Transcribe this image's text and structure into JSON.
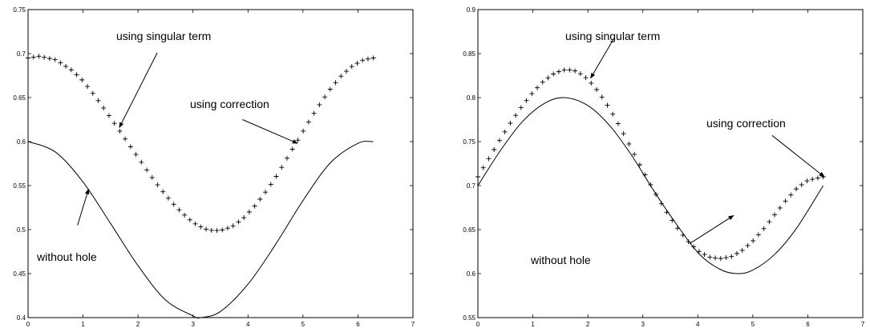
{
  "chart_data": [
    {
      "type": "line",
      "title": "",
      "xlabel": "",
      "ylabel": "",
      "xlim": [
        0,
        7
      ],
      "ylim": [
        0.4,
        0.75
      ],
      "x_ticks": [
        "0",
        "1",
        "2",
        "3",
        "4",
        "5",
        "6",
        "7"
      ],
      "y_ticks": [
        "0.4",
        "0.45",
        "0.5",
        "0.55",
        "0.6",
        "0.65",
        "0.7",
        "0.75"
      ],
      "grid": false,
      "series": [
        {
          "marker": "none",
          "color": "#000000",
          "x": [
            0,
            0.5,
            1,
            1.5,
            2,
            2.5,
            3,
            3.14,
            3.5,
            4,
            4.5,
            5,
            5.5,
            6,
            6.28
          ],
          "y": [
            0.6,
            0.588,
            0.554,
            0.507,
            0.459,
            0.42,
            0.402,
            0.4,
            0.407,
            0.438,
            0.483,
            0.533,
            0.576,
            0.598,
            0.6
          ]
        },
        {
          "marker": "plus",
          "color": "#000000",
          "x": [
            0,
            0.2,
            0.5,
            0.8,
            1,
            1.2,
            1.4,
            1.6,
            1.8,
            2,
            2.2,
            2.4,
            2.6,
            2.8,
            3,
            3.2,
            3.35,
            3.5,
            3.7,
            3.9,
            4.1,
            4.3,
            4.5,
            4.7,
            4.9,
            5.1,
            5.3,
            5.5,
            5.7,
            5.9,
            6.1,
            6.28
          ],
          "y": [
            0.695,
            0.697,
            0.693,
            0.681,
            0.669,
            0.653,
            0.636,
            0.618,
            0.6,
            0.582,
            0.564,
            0.547,
            0.532,
            0.519,
            0.508,
            0.501,
            0.499,
            0.499,
            0.503,
            0.512,
            0.525,
            0.541,
            0.559,
            0.58,
            0.601,
            0.622,
            0.642,
            0.66,
            0.675,
            0.686,
            0.693,
            0.695
          ]
        }
      ],
      "annotations": [
        {
          "text": "using singular term",
          "from": [
            2.35,
            0.701
          ],
          "to": [
            1.66,
            0.616
          ]
        },
        {
          "text": "using correction",
          "from": [
            3.9,
            0.625
          ],
          "to": [
            4.9,
            0.598
          ]
        },
        {
          "text": "without hole",
          "from": [
            0.9,
            0.505
          ],
          "to": [
            1.1,
            0.546
          ]
        }
      ]
    },
    {
      "type": "line",
      "title": "",
      "xlabel": "",
      "ylabel": "",
      "xlim": [
        0,
        7
      ],
      "ylim": [
        0.55,
        0.9
      ],
      "x_ticks": [
        "0",
        "1",
        "2",
        "3",
        "4",
        "5",
        "6",
        "7"
      ],
      "y_ticks": [
        "0.55",
        "0.6",
        "0.65",
        "0.7",
        "0.75",
        "0.8",
        "0.85",
        "0.9"
      ],
      "grid": false,
      "series": [
        {
          "marker": "none",
          "color": "#000000",
          "x": [
            0,
            0.4,
            0.8,
            1.2,
            1.57,
            2,
            2.4,
            2.8,
            3.14,
            3.5,
            4,
            4.4,
            4.71,
            5,
            5.4,
            5.8,
            6.28
          ],
          "y": [
            0.7,
            0.739,
            0.772,
            0.793,
            0.8,
            0.791,
            0.768,
            0.734,
            0.7,
            0.666,
            0.624,
            0.605,
            0.6,
            0.604,
            0.622,
            0.652,
            0.7
          ]
        },
        {
          "marker": "plus",
          "color": "#000000",
          "x": [
            0,
            0.2,
            0.4,
            0.6,
            0.8,
            1,
            1.2,
            1.4,
            1.6,
            1.8,
            2,
            2.2,
            2.4,
            2.6,
            2.8,
            3,
            3.2,
            3.4,
            3.6,
            3.8,
            4,
            4.2,
            4.4,
            4.6,
            4.8,
            5,
            5.2,
            5.4,
            5.6,
            5.8,
            6,
            6.28
          ],
          "y": [
            0.71,
            0.731,
            0.752,
            0.772,
            0.79,
            0.806,
            0.819,
            0.828,
            0.832,
            0.83,
            0.821,
            0.806,
            0.787,
            0.765,
            0.741,
            0.717,
            0.694,
            0.673,
            0.654,
            0.638,
            0.626,
            0.619,
            0.617,
            0.619,
            0.626,
            0.637,
            0.651,
            0.667,
            0.683,
            0.697,
            0.706,
            0.71
          ]
        }
      ],
      "annotations": [
        {
          "text": "using singular term",
          "from": [
            2.48,
            0.868
          ],
          "to": [
            2.05,
            0.822
          ]
        },
        {
          "text": "using correction",
          "from": [
            5.35,
            0.757
          ],
          "to": [
            6.3,
            0.71
          ]
        },
        {
          "text": "without hole",
          "from": [
            3.85,
            0.634
          ],
          "to": [
            4.65,
            0.666
          ]
        }
      ]
    }
  ]
}
